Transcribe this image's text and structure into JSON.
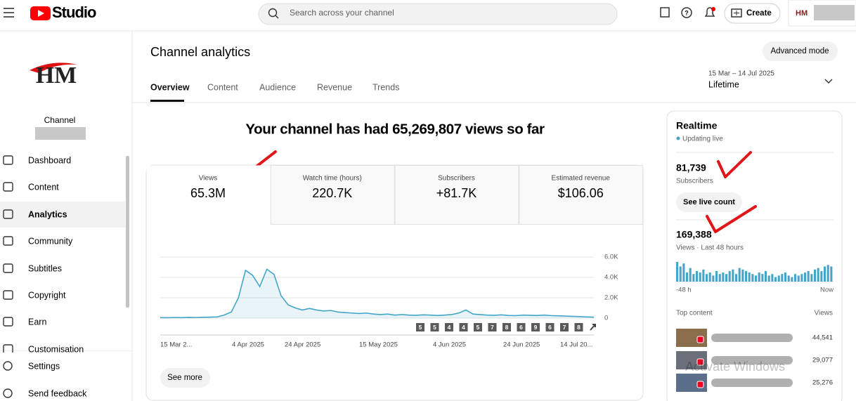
{
  "header": {
    "logo": "Studio",
    "search_placeholder": "Search across your channel",
    "create": "Create"
  },
  "sidebar": {
    "channel_label": "Channel",
    "items": [
      "Dashboard",
      "Content",
      "Analytics",
      "Community",
      "Subtitles",
      "Copyright",
      "Earn",
      "Customisation"
    ],
    "footer": [
      "Settings",
      "Send feedback"
    ]
  },
  "main": {
    "title": "Channel analytics",
    "advanced_mode": "Advanced mode",
    "tabs": [
      "Overview",
      "Content",
      "Audience",
      "Revenue",
      "Trends"
    ],
    "date_range": "15 Mar – 14 Jul 2025",
    "period": "Lifetime",
    "headline": "Your channel has had 65,269,807 views so far",
    "metrics": [
      {
        "label": "Views",
        "value": "65.3M"
      },
      {
        "label": "Watch time (hours)",
        "value": "220.7K"
      },
      {
        "label": "Subscribers",
        "value": "+81.7K"
      },
      {
        "label": "Estimated revenue",
        "value": "$106.06"
      }
    ],
    "see_more": "See more"
  },
  "chart": {
    "type": "line",
    "color": "#41a6c7",
    "ylim": [
      0,
      6000
    ],
    "yticks": [
      {
        "value": 6000,
        "label": "6.0K"
      },
      {
        "value": 4000,
        "label": "4.0K"
      },
      {
        "value": 2000,
        "label": "2.0K"
      },
      0
    ],
    "x_labels": [
      "15 Mar 2...",
      "4 Apr 2025",
      "24 Apr 2025",
      "15 May 2025",
      "4 Jun 2025",
      "24 Jun 2025",
      "14 Jul 20..."
    ],
    "values": [
      50,
      40,
      60,
      50,
      70,
      60,
      80,
      100,
      120,
      300,
      600,
      2000,
      4700,
      4200,
      3100,
      4800,
      4300,
      2200,
      1300,
      1000,
      800,
      950,
      800,
      700,
      750,
      600,
      550,
      500,
      450,
      500,
      400,
      350,
      400,
      300,
      350,
      300,
      280,
      320,
      300,
      260,
      300,
      350,
      500,
      800,
      400,
      350,
      300,
      280,
      320,
      260,
      250,
      300,
      280,
      260,
      300,
      250,
      230,
      200,
      180,
      150,
      120,
      100
    ],
    "markers": [
      "5",
      "5",
      "4",
      "4",
      "5",
      "7",
      "8",
      "6",
      "9",
      "6",
      "7",
      "8"
    ]
  },
  "realtime": {
    "title": "Realtime",
    "status": "Updating live",
    "subscribers": "81,739",
    "subscribers_label": "Subscribers",
    "see_live_count": "See live count",
    "views": "169,388",
    "views_label": "Views · Last 48 hours",
    "start_label": "-48 h",
    "end_label": "Now",
    "top_content": "Top content",
    "views_col": "Views",
    "bars": [
      26,
      20,
      24,
      12,
      18,
      10,
      14,
      12,
      16,
      10,
      12,
      8,
      14,
      10,
      12,
      10,
      14,
      16,
      10,
      18,
      16,
      14,
      12,
      10,
      8,
      12,
      10,
      14,
      8,
      10,
      6,
      8,
      10,
      12,
      8,
      6,
      10,
      8,
      10,
      12,
      14,
      10,
      16,
      18,
      14,
      20,
      22,
      20
    ],
    "rows": [
      "44,541",
      "29,077",
      "25,276"
    ]
  },
  "watermark": "Activate Windows"
}
